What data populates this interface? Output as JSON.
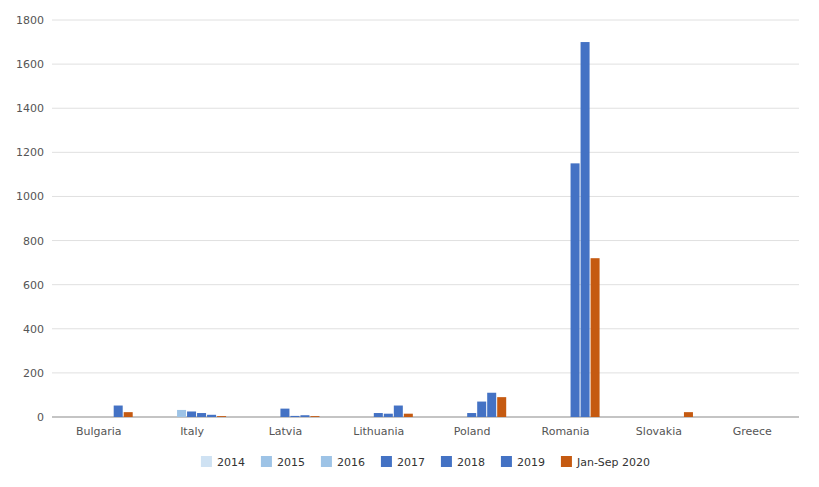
{
  "chart_data": {
    "type": "bar",
    "categories": [
      "Bulgaria",
      "Italy",
      "Latvia",
      "Lithuania",
      "Poland",
      "Romania",
      "Slovakia",
      "Greece"
    ],
    "series": [
      {
        "name": "2014",
        "color": "#cfe2f3",
        "values": [
          0,
          0,
          0,
          0,
          0,
          0,
          0,
          0
        ]
      },
      {
        "name": "2015",
        "color": "#9dc3e6",
        "values": [
          0,
          0,
          0,
          0,
          0,
          0,
          0,
          0
        ]
      },
      {
        "name": "2016",
        "color": "#9dc3e6",
        "values": [
          0,
          32,
          0,
          0,
          0,
          0,
          0,
          0
        ]
      },
      {
        "name": "2017",
        "color": "#4472c4",
        "values": [
          0,
          25,
          38,
          18,
          18,
          0,
          0,
          0
        ]
      },
      {
        "name": "2018",
        "color": "#4472c4",
        "values": [
          0,
          18,
          5,
          15,
          70,
          1150,
          0,
          0
        ]
      },
      {
        "name": "2019",
        "color": "#4472c4",
        "values": [
          52,
          10,
          8,
          52,
          110,
          1700,
          0,
          0
        ]
      },
      {
        "name": "Jan-Sep 2020",
        "color": "#c55a11",
        "values": [
          22,
          4,
          4,
          15,
          90,
          720,
          22,
          0
        ]
      }
    ],
    "ylim": [
      0,
      1800
    ],
    "yticks": [
      0,
      200,
      400,
      600,
      800,
      1000,
      1200,
      1400,
      1600,
      1800
    ],
    "grid": true,
    "legend": "bottom"
  }
}
